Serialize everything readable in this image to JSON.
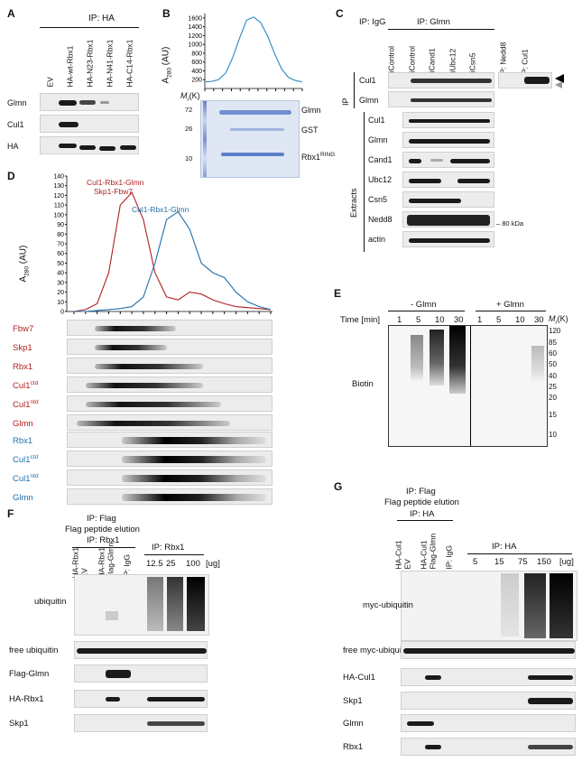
{
  "panels": {
    "A": {
      "letter": "A",
      "ip": "IP: HA",
      "lanes": [
        "EV",
        "HA-wt-Rbx1",
        "HA-N23-Rbx1",
        "HA-N41-Rbx1",
        "HA-C14-Rbx1"
      ],
      "rows": [
        "Glmn",
        "Cul1",
        "HA"
      ]
    },
    "B": {
      "letter": "B",
      "ylabel": "A",
      "ylabel_sub": "280",
      "ylabel_unit": "(AU)",
      "yticks": [
        "1600",
        "1400",
        "1200",
        "1000",
        "800",
        "600",
        "400",
        "200"
      ],
      "mr_label": "M",
      "mr_sub": "r",
      "mr_unit": "(K)",
      "mw": [
        "72",
        "26",
        "10"
      ],
      "bands": [
        "Glmn",
        "GST",
        "Rbx1"
      ],
      "rbx1_sup": "RING"
    },
    "C": {
      "letter": "C",
      "ip_igg": "IP: IgG",
      "ip_glmn": "IP: Glmn",
      "lanes": [
        "siControl",
        "siControl",
        "siCand1",
        "siUbc12",
        "siCsn5"
      ],
      "ip_nedd8": "IP: Nedd8",
      "ip_cul1": "IP: Cul1",
      "ip_rows": [
        "Cul1",
        "Glmn"
      ],
      "ip_side": "IP",
      "extract_rows": [
        "Cul1",
        "Glmn",
        "Cand1",
        "Ubc12",
        "Csn5",
        "Nedd8",
        "actin"
      ],
      "extracts_side": "Extracts",
      "kda": "80 kDa"
    },
    "D": {
      "letter": "D",
      "ylabel": "A",
      "ylabel_sub": "280",
      "ylabel_unit": "(AU)",
      "yticks": [
        "140",
        "130",
        "120",
        "110",
        "100",
        "90",
        "80",
        "70",
        "60",
        "50",
        "40",
        "30",
        "20",
        "10",
        "0"
      ],
      "red_label_1": "Cul1-Rbx1-Glmn",
      "red_label_2": "Skp1-Fbw7",
      "blue_label": "Cul1-Rbx1-Glmn",
      "red_rows": [
        "Fbw7",
        "Skp1",
        "Rbx1",
        "Cul1",
        "Cul1",
        "Glmn"
      ],
      "red_sup": [
        "",
        "",
        "",
        "ctd",
        "ntd",
        ""
      ],
      "blue_rows": [
        "Rbx1",
        "Cul1",
        "Cul1",
        "Glmn"
      ],
      "blue_sup": [
        "",
        "ctd",
        "ntd",
        ""
      ]
    },
    "E": {
      "letter": "E",
      "minus": "- Glmn",
      "plus": "+ Glmn",
      "time": "Time [min]",
      "times": [
        "1",
        "5",
        "10",
        "30",
        "1",
        "5",
        "10",
        "30"
      ],
      "mr_label": "M",
      "mr_sub": "r",
      "mr_unit": "(K)",
      "mw": [
        "120",
        "85",
        "60",
        "50",
        "40",
        "25",
        "20",
        "15",
        "10"
      ],
      "row": "Biotin"
    },
    "F": {
      "letter": "F",
      "title1": "IP: Flag",
      "title2": "Flag peptide elution",
      "title3": "IP: Rbx1",
      "lanes": [
        "HA-Rbx1",
        "EV",
        "HA-Rbx1",
        "Flag-Glmn",
        "IP: IgG"
      ],
      "ip2": "IP: Rbx1",
      "doses": [
        "12.5",
        "25",
        "100",
        "[ug]"
      ],
      "rows": [
        "ubiquitin",
        "free ubiquitin",
        "Flag-Glmn",
        "HA-Rbx1",
        "Skp1"
      ]
    },
    "G": {
      "letter": "G",
      "title1": "IP: Flag",
      "title2": "Flag peptide elution",
      "title3": "IP: HA",
      "lanes": [
        "HA-Cul1",
        "EV",
        "HA-Cul1",
        "Flag-Glmn",
        "IP: IgG"
      ],
      "ip2": "IP: HA",
      "doses": [
        "5",
        "15",
        "75",
        "150",
        "[ug]"
      ],
      "rows": [
        "myc-ubiquitin",
        "free myc-ubiquitin",
        "HA-Cul1",
        "Skp1",
        "Glmn",
        "Rbx1"
      ]
    }
  },
  "colors": {
    "red": "#b01f1f",
    "blue": "#1e6fa8",
    "coomassie": "#4a6fb8"
  },
  "chart_data": [
    {
      "type": "line",
      "panel": "B",
      "ylabel": "A280 (AU)",
      "ylim": [
        0,
        1700
      ],
      "series": [
        {
          "values": [
            150,
            160,
            200,
            350,
            700,
            1150,
            1550,
            1620,
            1500,
            1200,
            800,
            450,
            250,
            180,
            150
          ]
        }
      ]
    },
    {
      "type": "line",
      "panel": "D",
      "ylabel": "A280 (AU)",
      "ylim": [
        0,
        140
      ],
      "series": [
        {
          "name": "Cul1-Rbx1-Glmn Skp1-Fbw7",
          "values": [
            0,
            2,
            8,
            40,
            110,
            123,
            95,
            40,
            15,
            12,
            20,
            18,
            12,
            8,
            5,
            4,
            3,
            2
          ]
        },
        {
          "name": "Cul1-Rbx1-Glmn",
          "values": [
            0,
            0,
            1,
            2,
            3,
            5,
            15,
            50,
            95,
            103,
            85,
            50,
            40,
            35,
            20,
            10,
            5,
            2
          ]
        }
      ]
    }
  ]
}
